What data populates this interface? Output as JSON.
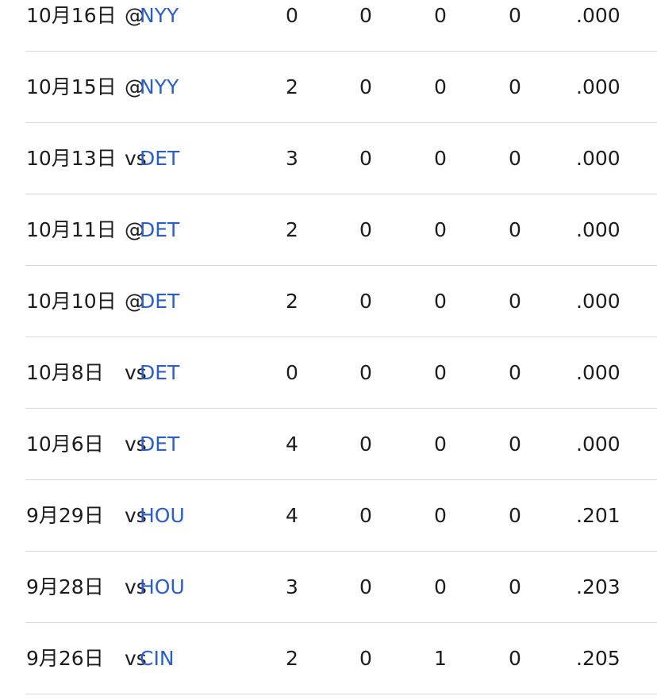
{
  "game_log": {
    "rows": [
      {
        "date": "10月16日",
        "location": "@",
        "opponent": "NYY",
        "stat1": "0",
        "stat2": "0",
        "stat3": "0",
        "stat4": "0",
        "avg": ".000"
      },
      {
        "date": "10月15日",
        "location": "@",
        "opponent": "NYY",
        "stat1": "2",
        "stat2": "0",
        "stat3": "0",
        "stat4": "0",
        "avg": ".000"
      },
      {
        "date": "10月13日",
        "location": "vs",
        "opponent": "DET",
        "stat1": "3",
        "stat2": "0",
        "stat3": "0",
        "stat4": "0",
        "avg": ".000"
      },
      {
        "date": "10月11日",
        "location": "@",
        "opponent": "DET",
        "stat1": "2",
        "stat2": "0",
        "stat3": "0",
        "stat4": "0",
        "avg": ".000"
      },
      {
        "date": "10月10日",
        "location": "@",
        "opponent": "DET",
        "stat1": "2",
        "stat2": "0",
        "stat3": "0",
        "stat4": "0",
        "avg": ".000"
      },
      {
        "date": "10月8日",
        "location": "vs",
        "opponent": "DET",
        "stat1": "0",
        "stat2": "0",
        "stat3": "0",
        "stat4": "0",
        "avg": ".000"
      },
      {
        "date": "10月6日",
        "location": "vs",
        "opponent": "DET",
        "stat1": "4",
        "stat2": "0",
        "stat3": "0",
        "stat4": "0",
        "avg": ".000"
      },
      {
        "date": "9月29日",
        "location": "vs",
        "opponent": "HOU",
        "stat1": "4",
        "stat2": "0",
        "stat3": "0",
        "stat4": "0",
        "avg": ".201"
      },
      {
        "date": "9月28日",
        "location": "vs",
        "opponent": "HOU",
        "stat1": "3",
        "stat2": "0",
        "stat3": "0",
        "stat4": "0",
        "avg": ".203"
      },
      {
        "date": "9月26日",
        "location": "vs",
        "opponent": "CIN",
        "stat1": "2",
        "stat2": "0",
        "stat3": "1",
        "stat4": "0",
        "avg": ".205"
      }
    ]
  },
  "colors": {
    "link": "#2b5fc7",
    "text": "#1c1c1e",
    "divider": "#d6d6d8"
  }
}
